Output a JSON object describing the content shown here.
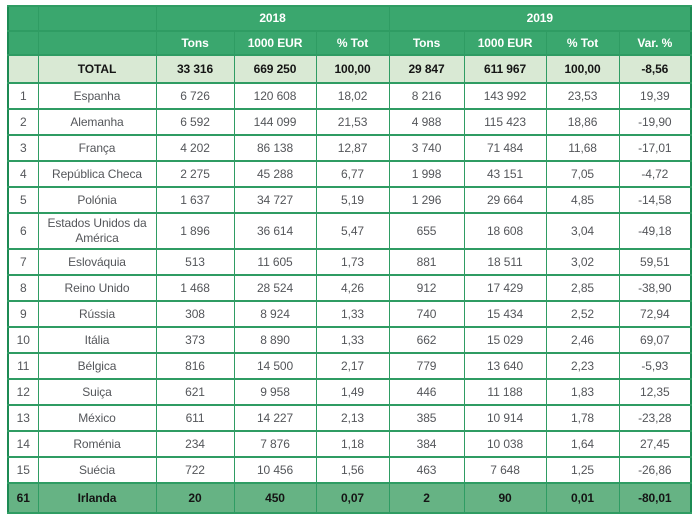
{
  "colors": {
    "header_green": "#3aa76e",
    "border_green": "#2f9c63",
    "outer_border_green": "#1c8a53",
    "total_row_bg": "#d9e9d4",
    "highlight_row_bg": "#66b384",
    "data_text": "#54565a",
    "bold_text": "#151515"
  },
  "chart_data": {
    "type": "table",
    "title": "",
    "column_groups": [
      {
        "label": "2018",
        "span": 3
      },
      {
        "label": "2019",
        "span": 4
      }
    ],
    "sub_headers": [
      "Tons",
      "1000 EUR",
      "% Tot",
      "Tons",
      "1000 EUR",
      "% Tot",
      "Var. %"
    ],
    "total_row": {
      "rank": "",
      "name": "TOTAL",
      "values": [
        "33 316",
        "669 250",
        "100,00",
        "29 847",
        "611 967",
        "100,00",
        "-8,56"
      ]
    },
    "rows": [
      {
        "rank": "1",
        "name": "Espanha",
        "values": [
          "6 726",
          "120 608",
          "18,02",
          "8 216",
          "143 992",
          "23,53",
          "19,39"
        ]
      },
      {
        "rank": "2",
        "name": "Alemanha",
        "values": [
          "6 592",
          "144 099",
          "21,53",
          "4 988",
          "115 423",
          "18,86",
          "-19,90"
        ]
      },
      {
        "rank": "3",
        "name": "França",
        "values": [
          "4 202",
          "86 138",
          "12,87",
          "3 740",
          "71 484",
          "11,68",
          "-17,01"
        ]
      },
      {
        "rank": "4",
        "name": "República Checa",
        "values": [
          "2 275",
          "45 288",
          "6,77",
          "1 998",
          "43 151",
          "7,05",
          "-4,72"
        ]
      },
      {
        "rank": "5",
        "name": "Polónia",
        "values": [
          "1 637",
          "34 727",
          "5,19",
          "1 296",
          "29 664",
          "4,85",
          "-14,58"
        ]
      },
      {
        "rank": "6",
        "name": "Estados Unidos da América",
        "values": [
          "1 896",
          "36 614",
          "5,47",
          "655",
          "18 608",
          "3,04",
          "-49,18"
        ]
      },
      {
        "rank": "7",
        "name": "Eslováquia",
        "values": [
          "513",
          "11 605",
          "1,73",
          "881",
          "18 511",
          "3,02",
          "59,51"
        ]
      },
      {
        "rank": "8",
        "name": "Reino Unido",
        "values": [
          "1 468",
          "28 524",
          "4,26",
          "912",
          "17 429",
          "2,85",
          "-38,90"
        ]
      },
      {
        "rank": "9",
        "name": "Rússia",
        "values": [
          "308",
          "8 924",
          "1,33",
          "740",
          "15 434",
          "2,52",
          "72,94"
        ]
      },
      {
        "rank": "10",
        "name": "Itália",
        "values": [
          "373",
          "8 890",
          "1,33",
          "662",
          "15 029",
          "2,46",
          "69,07"
        ]
      },
      {
        "rank": "11",
        "name": "Bélgica",
        "values": [
          "816",
          "14 500",
          "2,17",
          "779",
          "13 640",
          "2,23",
          "-5,93"
        ]
      },
      {
        "rank": "12",
        "name": "Suiça",
        "values": [
          "621",
          "9 958",
          "1,49",
          "446",
          "11 188",
          "1,83",
          "12,35"
        ]
      },
      {
        "rank": "13",
        "name": "México",
        "values": [
          "611",
          "14 227",
          "2,13",
          "385",
          "10 914",
          "1,78",
          "-23,28"
        ]
      },
      {
        "rank": "14",
        "name": "Roménia",
        "values": [
          "234",
          "7 876",
          "1,18",
          "384",
          "10 038",
          "1,64",
          "27,45"
        ]
      },
      {
        "rank": "15",
        "name": "Suécia",
        "values": [
          "722",
          "10 456",
          "1,56",
          "463",
          "7 648",
          "1,25",
          "-26,86"
        ]
      },
      {
        "rank": "61",
        "name": "Irlanda",
        "highlight": true,
        "values": [
          "20",
          "450",
          "0,07",
          "2",
          "90",
          "0,01",
          "-80,01"
        ]
      }
    ]
  }
}
